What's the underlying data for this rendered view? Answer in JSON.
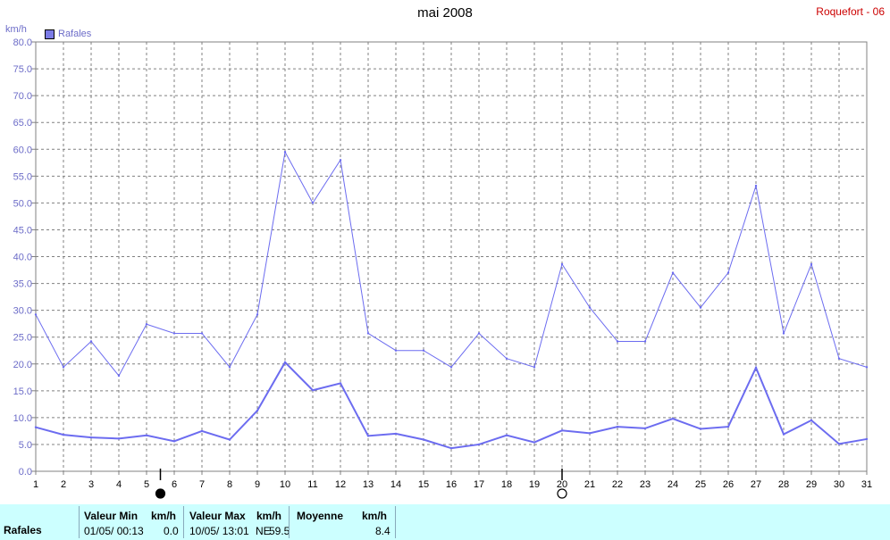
{
  "header": {
    "title": "mai 2008",
    "station": "Roquefort - 06",
    "unit": "km/h",
    "legend": "Rafales",
    "series_color": "#6c6cf0"
  },
  "chart_data": {
    "type": "line",
    "title": "mai 2008",
    "ylabel": "km/h",
    "ylim": [
      0,
      80
    ],
    "yticks": [
      "0.0",
      "5.0",
      "10.0",
      "15.0",
      "20.0",
      "25.0",
      "30.0",
      "35.0",
      "40.0",
      "45.0",
      "50.0",
      "55.0",
      "60.0",
      "65.0",
      "70.0",
      "75.0",
      "80.0"
    ],
    "x": [
      1,
      2,
      3,
      4,
      5,
      6,
      7,
      8,
      9,
      10,
      11,
      12,
      13,
      14,
      15,
      16,
      17,
      18,
      19,
      20,
      21,
      22,
      23,
      24,
      25,
      26,
      27,
      28,
      29,
      30,
      31
    ],
    "grid": true,
    "legend_position": "top-left",
    "series": [
      {
        "name": "Rafales",
        "values": [
          29.2,
          19.4,
          24.2,
          17.8,
          27.4,
          25.7,
          25.7,
          19.4,
          29.2,
          59.5,
          50.0,
          58.0,
          25.7,
          22.5,
          22.5,
          19.4,
          25.7,
          21.0,
          19.4,
          38.6,
          30.5,
          24.2,
          24.2,
          37.0,
          30.5,
          37.0,
          53.2,
          25.7,
          38.6,
          21.0,
          19.4
        ]
      },
      {
        "values": [
          8.2,
          6.8,
          6.3,
          6.1,
          6.7,
          5.6,
          7.5,
          5.9,
          11.3,
          20.3,
          15.1,
          16.4,
          6.6,
          7.0,
          5.9,
          4.3,
          5.0,
          6.7,
          5.4,
          7.6,
          7.1,
          8.3,
          8.0,
          9.8,
          7.9,
          8.3,
          19.3,
          6.9,
          9.5,
          5.1,
          6.0
        ]
      }
    ],
    "markers": [
      {
        "x": 5.5,
        "symbol": "filled-circle"
      },
      {
        "x": 20,
        "symbol": "open-circle"
      }
    ]
  },
  "footer": {
    "series": "Rafales",
    "min_label": "Valeur Min",
    "min_unit": "km/h",
    "min_date": "01/05/  00:13",
    "min_value": "0.0",
    "max_label": "Valeur Max",
    "max_unit": "km/h",
    "max_date": "10/05/  13:01",
    "max_dir": "NE",
    "max_value": "59.5",
    "avg_label": "Moyenne",
    "avg_unit": "km/h",
    "avg_value": "8.4"
  }
}
